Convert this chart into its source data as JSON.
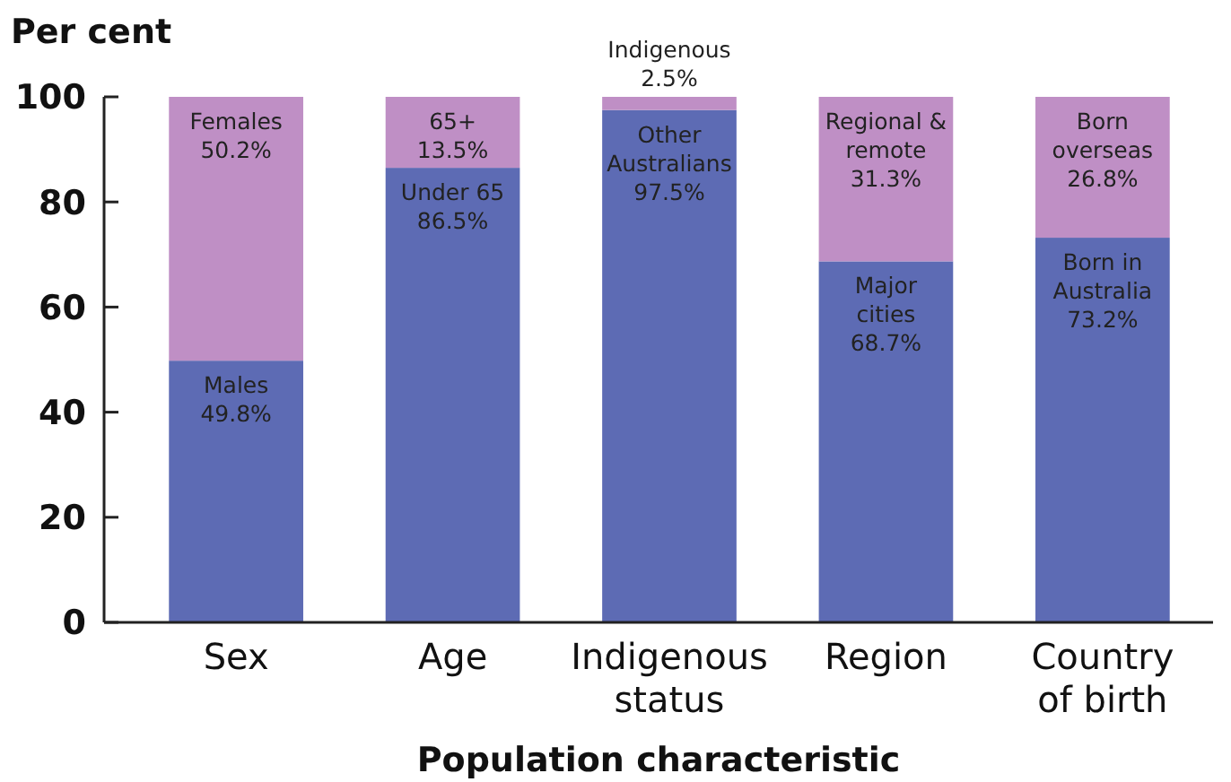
{
  "chart_data": {
    "type": "bar",
    "stacked": true,
    "xlabel": "Population characteristic",
    "ylabel": "Per cent",
    "categories": [
      "Sex",
      "Age",
      "Indigenous status",
      "Region",
      "Country of birth"
    ],
    "series": [
      {
        "color": "#5d6bb4",
        "values": [
          49.8,
          86.5,
          97.5,
          68.7,
          73.2
        ],
        "value_labels": [
          "Males 49.8%",
          "Under 65 86.5%",
          "Other Australians 97.5%",
          "Major cities 68.7%",
          "Born in Australia 73.2%"
        ]
      },
      {
        "color": "#bf8fc5",
        "values": [
          50.2,
          13.5,
          2.5,
          31.3,
          26.8
        ],
        "value_labels": [
          "Females 50.2%",
          "65+ 13.5%",
          "Indigenous 2.5%",
          "Regional & remote 31.3%",
          "Born overseas 26.8%"
        ]
      }
    ],
    "ylim": [
      0,
      100
    ],
    "yticks": [
      0,
      20,
      40,
      60,
      80,
      100
    ],
    "grid": false
  }
}
